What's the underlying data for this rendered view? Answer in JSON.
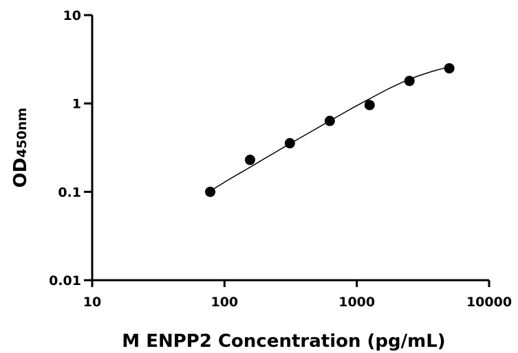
{
  "chart_data": {
    "type": "scatter",
    "title": "",
    "xlabel": "M ENPP2 Concentration (pg/mL)",
    "ylabel_main": "OD",
    "ylabel_sub": "450nm",
    "xscale": "log",
    "yscale": "log",
    "xlim": [
      10,
      10000
    ],
    "ylim": [
      0.01,
      10
    ],
    "x_ticks": [
      "10",
      "100",
      "1000",
      "10000"
    ],
    "y_ticks": [
      "10",
      "1",
      "0.1",
      "0.01"
    ],
    "grid": false,
    "legend": "none",
    "series": [
      {
        "marker": "circle",
        "color": "#000000",
        "x": [
          78,
          156,
          312,
          625,
          1250,
          2500,
          5000
        ],
        "y": [
          0.1,
          0.23,
          0.355,
          0.635,
          0.96,
          1.8,
          2.5
        ]
      }
    ],
    "fit_curve": {
      "x": [
        78,
        110,
        156,
        220,
        312,
        440,
        625,
        880,
        1250,
        1760,
        2500,
        3520,
        5000
      ],
      "y": [
        0.102,
        0.14,
        0.19,
        0.258,
        0.35,
        0.47,
        0.635,
        0.85,
        1.13,
        1.48,
        1.88,
        2.25,
        2.6
      ]
    }
  }
}
